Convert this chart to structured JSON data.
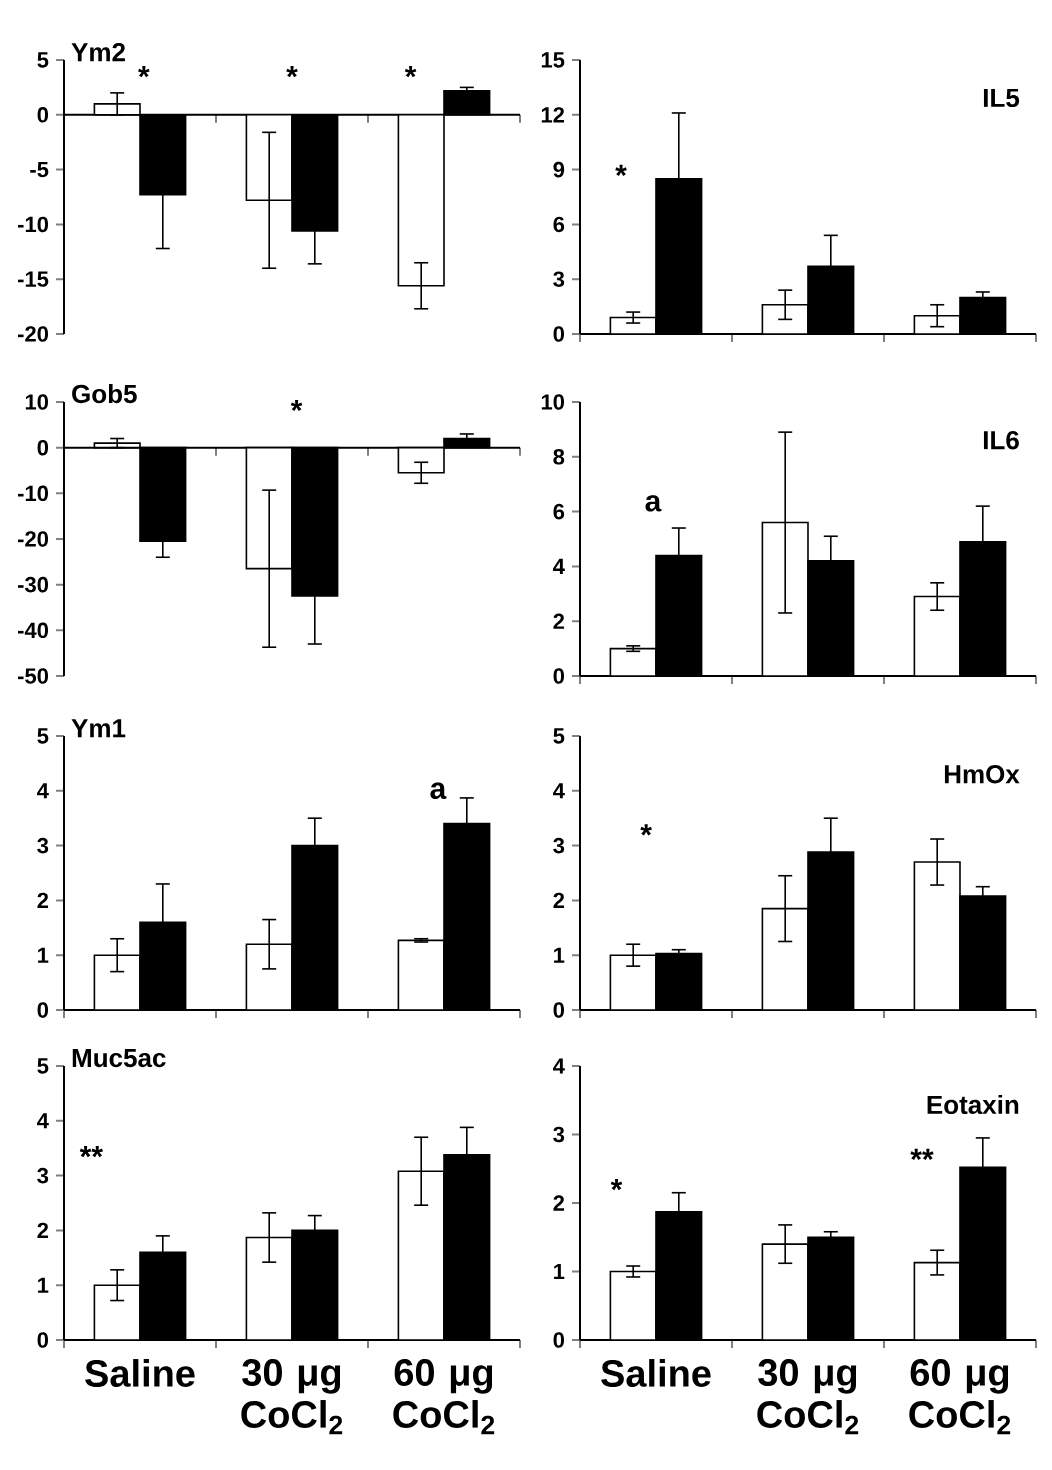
{
  "chart_data": [
    {
      "type": "bar",
      "title": "Ym2",
      "categories": [
        null,
        null,
        null
      ],
      "tick_labels": "y",
      "ylim": [
        -20,
        5
      ],
      "yticks": [
        -20,
        -15,
        -10,
        -5,
        0,
        5
      ],
      "series": [
        {
          "color": "#ffffff",
          "values": [
            1.0,
            -7.8,
            -15.6
          ],
          "errors": [
            1.0,
            6.2,
            2.1
          ]
        },
        {
          "color": "#000000",
          "values": [
            -7.3,
            -10.6,
            2.2
          ],
          "errors": [
            4.9,
            3.0,
            0.3
          ]
        }
      ],
      "annotations": [
        "*",
        "*",
        "*"
      ]
    },
    {
      "type": "bar",
      "title": "IL5",
      "categories": [
        null,
        null,
        null
      ],
      "tick_labels": "y",
      "ylim": [
        0,
        15
      ],
      "yticks": [
        0,
        3,
        6,
        9,
        12,
        15
      ],
      "series": [
        {
          "color": "#ffffff",
          "values": [
            0.9,
            1.6,
            1.0
          ],
          "errors": [
            0.3,
            0.8,
            0.6
          ]
        },
        {
          "color": "#000000",
          "values": [
            8.5,
            3.7,
            2.0
          ],
          "errors": [
            3.6,
            1.7,
            0.3
          ]
        }
      ],
      "annotations": [
        "*"
      ]
    },
    {
      "type": "bar",
      "title": "Gob5",
      "categories": [
        null,
        null,
        null
      ],
      "tick_labels": "y",
      "ylim": [
        -50,
        10
      ],
      "yticks": [
        -50,
        -40,
        -30,
        -20,
        -10,
        0,
        10
      ],
      "series": [
        {
          "color": "#ffffff",
          "values": [
            1.0,
            -26.5,
            -5.5
          ],
          "errors": [
            1.0,
            17.2,
            2.3
          ]
        },
        {
          "color": "#000000",
          "values": [
            -20.5,
            -32.5,
            2.0
          ],
          "errors": [
            3.5,
            10.5,
            1.0
          ]
        }
      ],
      "annotations": [
        "*"
      ]
    },
    {
      "type": "bar",
      "title": "IL6",
      "categories": [
        null,
        null,
        null
      ],
      "tick_labels": "y",
      "ylim": [
        0,
        10
      ],
      "yticks": [
        0,
        2,
        4,
        6,
        8,
        10
      ],
      "series": [
        {
          "color": "#ffffff",
          "values": [
            1.0,
            5.6,
            2.9
          ],
          "errors": [
            0.1,
            3.3,
            0.5
          ]
        },
        {
          "color": "#000000",
          "values": [
            4.4,
            4.2,
            4.9
          ],
          "errors": [
            1.0,
            0.9,
            1.3
          ]
        }
      ],
      "annotations": [
        "a"
      ]
    },
    {
      "type": "bar",
      "title": "Ym1",
      "categories": [
        null,
        null,
        null
      ],
      "tick_labels": "y",
      "ylim": [
        0,
        5
      ],
      "yticks": [
        0,
        1,
        2,
        3,
        4,
        5
      ],
      "series": [
        {
          "color": "#ffffff",
          "values": [
            1.0,
            1.2,
            1.27
          ],
          "errors": [
            0.3,
            0.45,
            0.03
          ]
        },
        {
          "color": "#000000",
          "values": [
            1.6,
            3.0,
            3.4
          ],
          "errors": [
            0.7,
            0.5,
            0.47
          ]
        }
      ],
      "annotations": [
        "a"
      ]
    },
    {
      "type": "bar",
      "title": "HmOx",
      "categories": [
        null,
        null,
        null
      ],
      "tick_labels": "y",
      "ylim": [
        0,
        5
      ],
      "yticks": [
        0,
        1,
        2,
        3,
        4,
        5
      ],
      "series": [
        {
          "color": "#ffffff",
          "values": [
            1.0,
            1.85,
            2.7
          ],
          "errors": [
            0.2,
            0.6,
            0.42
          ]
        },
        {
          "color": "#000000",
          "values": [
            1.03,
            2.88,
            2.08
          ],
          "errors": [
            0.07,
            0.62,
            0.17
          ]
        }
      ],
      "annotations": [
        "*"
      ]
    },
    {
      "type": "bar",
      "title": "Muc5ac",
      "categories": [
        "Saline",
        "30 μg CoCl$_{2}$",
        "60 μg CoCl$_{2}$"
      ],
      "ylim": [
        0,
        5
      ],
      "yticks": [
        0,
        1,
        2,
        3,
        4,
        5
      ],
      "series": [
        {
          "color": "#ffffff",
          "values": [
            1.0,
            1.87,
            3.08
          ],
          "errors": [
            0.28,
            0.45,
            0.62
          ]
        },
        {
          "color": "#000000",
          "values": [
            1.6,
            2.0,
            3.38
          ],
          "errors": [
            0.3,
            0.27,
            0.5
          ]
        }
      ],
      "annotations": [
        "**"
      ]
    },
    {
      "type": "bar",
      "title": "Eotaxin",
      "categories": [
        "Saline",
        "30 μg CoCl$_{2}$",
        "60 μg CoCl$_{2}$"
      ],
      "ylim": [
        0,
        4
      ],
      "yticks": [
        0,
        1,
        2,
        3,
        4
      ],
      "series": [
        {
          "color": "#ffffff",
          "values": [
            1.0,
            1.4,
            1.13
          ],
          "errors": [
            0.08,
            0.28,
            0.18
          ]
        },
        {
          "color": "#000000",
          "values": [
            1.87,
            1.5,
            2.52
          ],
          "errors": [
            0.28,
            0.08,
            0.43
          ]
        }
      ],
      "annotations": [
        "*",
        "**"
      ]
    }
  ]
}
